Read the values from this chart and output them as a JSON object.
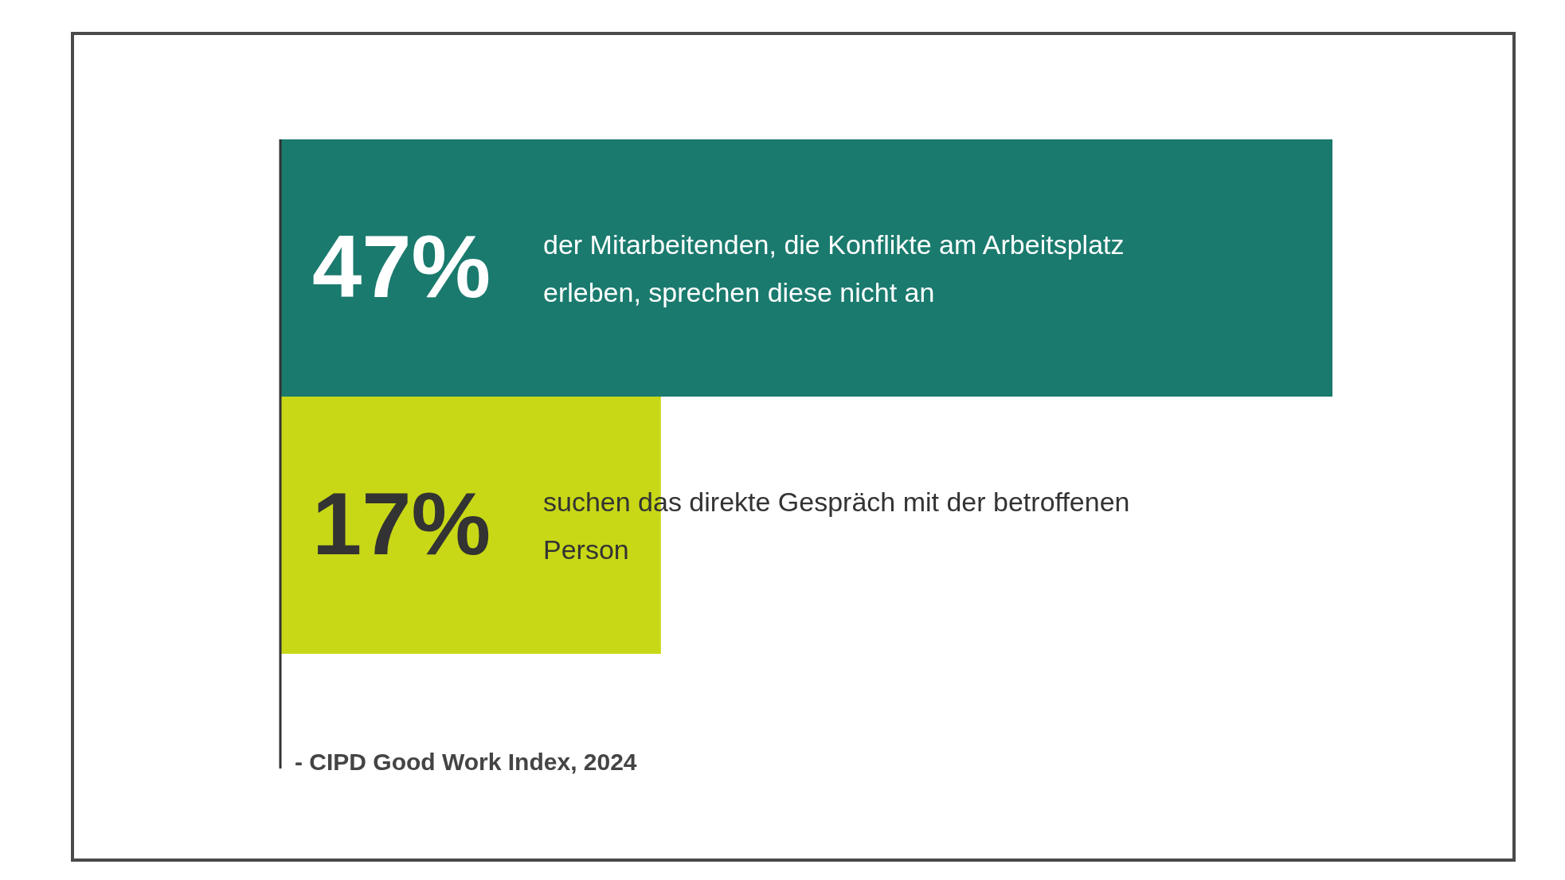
{
  "chart_data": {
    "type": "bar",
    "orientation": "horizontal",
    "categories": [
      "der Mitarbeitenden, die Konflikte am Arbeitsplatz erleben, sprechen diese nicht an",
      "suchen das direkte Gespräch mit der betroffenen Person"
    ],
    "values": [
      47,
      17
    ],
    "colors": [
      "#1a7a6e",
      "#c8d816"
    ],
    "value_labels": [
      "47%",
      "17%"
    ],
    "annotations": [
      "- CIPD Good Work Index, 2024"
    ]
  }
}
